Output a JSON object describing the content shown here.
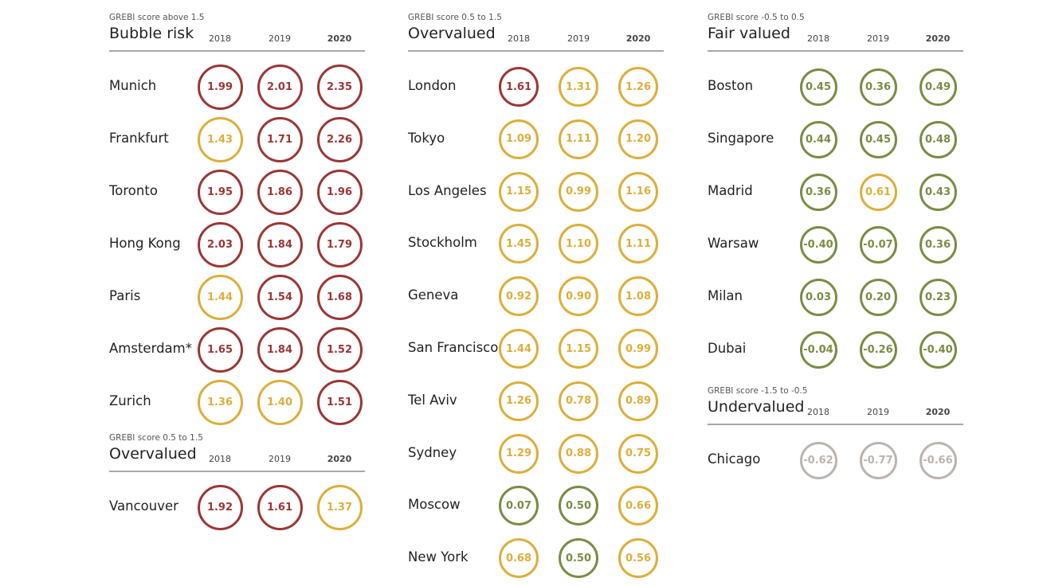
{
  "chart_data": [
    {
      "type": "table",
      "subtitle": "GREBI score above 1.5",
      "title": "Bubble risk",
      "years": [
        "2018",
        "2019",
        "2020"
      ],
      "rows": [
        {
          "city": "Munich",
          "values": [
            "1.99",
            "2.01",
            "2.35"
          ]
        },
        {
          "city": "Frankfurt",
          "values": [
            "1.43",
            "1.71",
            "2.26"
          ]
        },
        {
          "city": "Toronto",
          "values": [
            "1.95",
            "1.86",
            "1.96"
          ]
        },
        {
          "city": "Hong Kong",
          "values": [
            "2.03",
            "1.84",
            "1.79"
          ]
        },
        {
          "city": "Paris",
          "values": [
            "1.44",
            "1.54",
            "1.68"
          ]
        },
        {
          "city": "Amsterdam*",
          "values": [
            "1.65",
            "1.84",
            "1.52"
          ]
        },
        {
          "city": "Zurich",
          "values": [
            "1.36",
            "1.40",
            "1.51"
          ]
        }
      ]
    },
    {
      "type": "table",
      "subtitle": "GREBI score 0.5 to 1.5",
      "title": "Overvalued",
      "years": [
        "2018",
        "2019",
        "2020"
      ],
      "rows": [
        {
          "city": "Vancouver",
          "values": [
            "1.92",
            "1.61",
            "1.37"
          ]
        }
      ]
    },
    {
      "type": "table",
      "subtitle": "GREBI score 0.5 to 1.5",
      "title": "Overvalued",
      "years": [
        "2018",
        "2019",
        "2020"
      ],
      "rows": [
        {
          "city": "London",
          "values": [
            "1.61",
            "1.31",
            "1.26"
          ]
        },
        {
          "city": "Tokyo",
          "values": [
            "1.09",
            "1.11",
            "1.20"
          ]
        },
        {
          "city": "Los Angeles",
          "values": [
            "1.15",
            "0.99",
            "1.16"
          ]
        },
        {
          "city": "Stockholm",
          "values": [
            "1.45",
            "1.10",
            "1.11"
          ]
        },
        {
          "city": "Geneva",
          "values": [
            "0.92",
            "0.90",
            "1.08"
          ]
        },
        {
          "city": "San Francisco",
          "values": [
            "1.44",
            "1.15",
            "0.99"
          ]
        },
        {
          "city": "Tel Aviv",
          "values": [
            "1.26",
            "0.78",
            "0.89"
          ]
        },
        {
          "city": "Sydney",
          "values": [
            "1.29",
            "0.88",
            "0.75"
          ]
        },
        {
          "city": "Moscow",
          "values": [
            "0.07",
            "0.50",
            "0.66"
          ]
        },
        {
          "city": "New York",
          "values": [
            "0.68",
            "0.50",
            "0.56"
          ]
        }
      ]
    },
    {
      "type": "table",
      "subtitle": "GREBI score -0.5 to 0.5",
      "title": "Fair valued",
      "years": [
        "2018",
        "2019",
        "2020"
      ],
      "rows": [
        {
          "city": "Boston",
          "values": [
            "0.45",
            "0.36",
            "0.49"
          ]
        },
        {
          "city": "Singapore",
          "values": [
            "0.44",
            "0.45",
            "0.48"
          ]
        },
        {
          "city": "Madrid",
          "values": [
            "0.36",
            "0.61",
            "0.43"
          ]
        },
        {
          "city": "Warsaw",
          "values": [
            "-0.40",
            "-0.07",
            "0.36"
          ]
        },
        {
          "city": "Milan",
          "values": [
            "0.03",
            "0.20",
            "0.23"
          ]
        },
        {
          "city": "Dubai",
          "values": [
            "-0.04",
            "-0.26",
            "-0.40"
          ]
        }
      ]
    },
    {
      "type": "table",
      "subtitle": "GREBI score -1.5 to -0.5",
      "title": "Undervalued",
      "years": [
        "2018",
        "2019",
        "2020"
      ],
      "rows": [
        {
          "city": "Chicago",
          "values": [
            "-0.62",
            "-0.77",
            "-0.66"
          ]
        }
      ]
    }
  ],
  "colors": {
    "bubble_risk": "#9b3636",
    "overvalued": "#dcae3a",
    "fair_valued": "#7a8c44",
    "undervalued": "#bcb4ae"
  }
}
